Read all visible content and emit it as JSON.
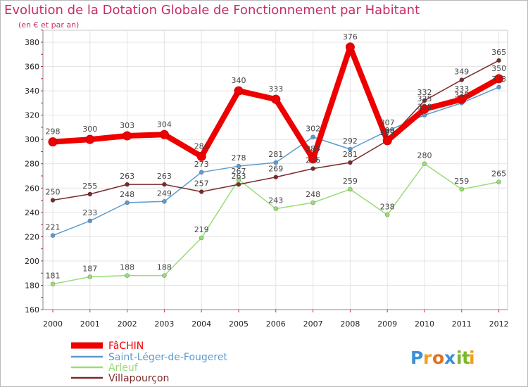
{
  "chart_data": {
    "type": "line",
    "title": "Evolution de la Dotation Globale de Fonctionnement par Habitant",
    "subtitle": "(en € et par an)",
    "xlabel": "",
    "ylabel": "",
    "ylim": [
      160,
      380
    ],
    "yticks": [
      160,
      180,
      200,
      220,
      240,
      260,
      280,
      300,
      320,
      340,
      360,
      380
    ],
    "x": [
      "2000",
      "2001",
      "2002",
      "2003",
      "2004",
      "2005",
      "2006",
      "2007",
      "2008",
      "2009",
      "2010",
      "2011",
      "2012"
    ],
    "grid": true,
    "legend_position": "bottom-left",
    "series": [
      {
        "name": "Saint-Léger-de-Fougeret",
        "color": "#5b9bd0",
        "values": [
          221,
          233,
          248,
          249,
          273,
          278,
          281,
          302,
          292,
          307,
          320,
          330,
          343
        ],
        "labels": [
          "221",
          "233",
          "248",
          "249",
          "273",
          "278",
          "281",
          "302",
          "292",
          "307",
          "320",
          "330",
          "343"
        ]
      },
      {
        "name": "Arleuf",
        "color": "#99dd77",
        "values": [
          181,
          187,
          188,
          188,
          219,
          267,
          243,
          248,
          259,
          238,
          280,
          259,
          265
        ],
        "labels": [
          "181",
          "187",
          "188",
          "188",
          "219",
          "267",
          "243",
          "248",
          "259",
          "238",
          "280",
          "259",
          "265"
        ]
      },
      {
        "name": "Villapourçon",
        "color": "#7b2a2a",
        "values": [
          250,
          255,
          263,
          263,
          257,
          263,
          269,
          276,
          281,
          299,
          332,
          349,
          365
        ],
        "labels": [
          "250",
          "255",
          "263",
          "263",
          "257",
          "263",
          "269",
          "276",
          "281",
          "299",
          "332",
          "349",
          "365"
        ]
      },
      {
        "name": "FâCHIN",
        "color": "#ee0000",
        "values": [
          298,
          300,
          303,
          304,
          286,
          340,
          333,
          284,
          376,
          299,
          325,
          333,
          350
        ],
        "labels": [
          "298",
          "300",
          "303",
          "304",
          "286",
          "340",
          "333",
          "284",
          "376",
          "299",
          "325",
          "333",
          "350"
        ]
      }
    ]
  },
  "legend": {
    "items": [
      {
        "name": "FâCHIN",
        "color": "#ee0000"
      },
      {
        "name": "Saint-Léger-de-Fougeret",
        "color": "#5b9bd0"
      },
      {
        "name": "Arleuf",
        "color": "#99dd77"
      },
      {
        "name": "Villapourçon",
        "color": "#7b2a2a"
      }
    ]
  },
  "logo": {
    "text": "Proxiti",
    "colors": [
      "#3a8fd6",
      "#f0a020",
      "#e07020",
      "#3a8fd6",
      "#7ab828",
      "#7ab828",
      "#f0a020"
    ]
  }
}
